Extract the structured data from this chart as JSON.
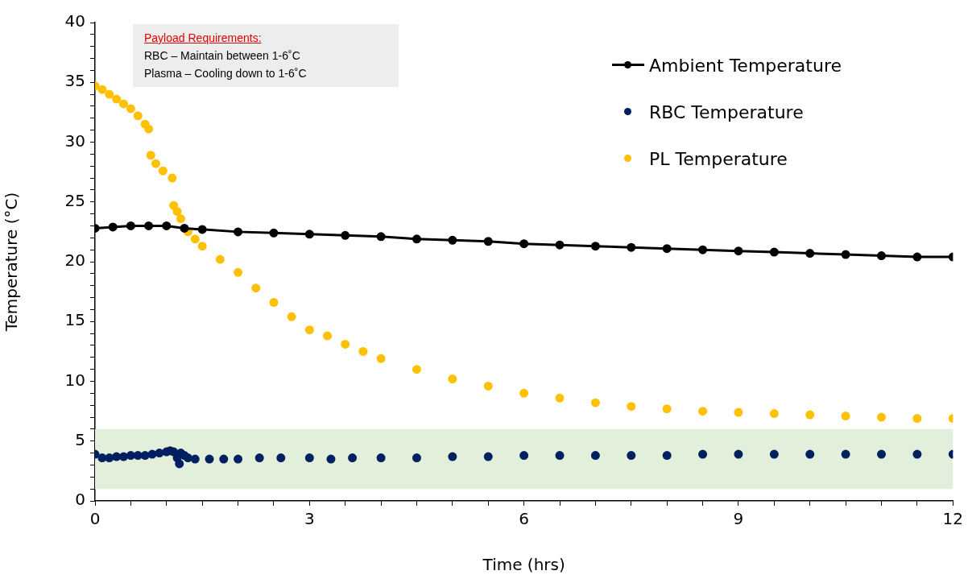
{
  "chart_data": {
    "type": "scatter",
    "xlabel": "Time (hrs)",
    "ylabel": "Temperature (°C)",
    "xlim": [
      0,
      12
    ],
    "ylim": [
      0,
      40
    ],
    "xticks": [
      0,
      {
        "value": 0.5,
        "label": null
      },
      {
        "value": 1,
        "label": null
      },
      {
        "value": 1.5,
        "label": null
      },
      {
        "value": 2,
        "label": null
      },
      {
        "value": 2.5,
        "label": null
      },
      3,
      {
        "value": 3.5,
        "label": null
      },
      {
        "value": 4,
        "label": null
      },
      {
        "value": 4.5,
        "label": null
      },
      {
        "value": 5,
        "label": null
      },
      {
        "value": 5.5,
        "label": null
      },
      6,
      {
        "value": 6.5,
        "label": null
      },
      {
        "value": 7,
        "label": null
      },
      {
        "value": 7.5,
        "label": null
      },
      {
        "value": 8,
        "label": null
      },
      {
        "value": 8.5,
        "label": null
      },
      9,
      {
        "value": 9.5,
        "label": null
      },
      {
        "value": 10,
        "label": null
      },
      {
        "value": 10.5,
        "label": null
      },
      {
        "value": 11,
        "label": null
      },
      {
        "value": 11.5,
        "label": null
      },
      12
    ],
    "yticks": [
      0,
      {
        "value": 1,
        "label": null
      },
      {
        "value": 2,
        "label": null
      },
      {
        "value": 3,
        "label": null
      },
      {
        "value": 4,
        "label": null
      },
      5,
      {
        "value": 6,
        "label": null
      },
      {
        "value": 7,
        "label": null
      },
      {
        "value": 8,
        "label": null
      },
      {
        "value": 9,
        "label": null
      },
      10,
      {
        "value": 11,
        "label": null
      },
      {
        "value": 12,
        "label": null
      },
      {
        "value": 13,
        "label": null
      },
      {
        "value": 14,
        "label": null
      },
      15,
      {
        "value": 16,
        "label": null
      },
      {
        "value": 17,
        "label": null
      },
      {
        "value": 18,
        "label": null
      },
      {
        "value": 19,
        "label": null
      },
      20,
      {
        "value": 21,
        "label": null
      },
      {
        "value": 22,
        "label": null
      },
      {
        "value": 23,
        "label": null
      },
      {
        "value": 24,
        "label": null
      },
      25,
      {
        "value": 26,
        "label": null
      },
      {
        "value": 27,
        "label": null
      },
      {
        "value": 28,
        "label": null
      },
      {
        "value": 29,
        "label": null
      },
      30,
      {
        "value": 31,
        "label": null
      },
      {
        "value": 32,
        "label": null
      },
      {
        "value": 33,
        "label": null
      },
      {
        "value": 34,
        "label": null
      },
      35,
      {
        "value": 36,
        "label": null
      },
      {
        "value": 37,
        "label": null
      },
      {
        "value": 38,
        "label": null
      },
      {
        "value": 39,
        "label": null
      },
      40
    ],
    "grid": false,
    "legend": "top right",
    "marker": "circle",
    "bands": [
      {
        "axis": "y",
        "from": 1,
        "to": 6,
        "color": "#e2efda"
      }
    ],
    "annotations": [
      "Payload Requirements:",
      "RBC – Maintain between 1-6˚C",
      "Plasma – Cooling down to 1-6˚C"
    ],
    "series": [
      {
        "name": "Ambient Temperature",
        "type": "line",
        "color": "#000000",
        "x": [
          0,
          0.25,
          0.5,
          0.75,
          1,
          1.25,
          1.5,
          2,
          2.5,
          3,
          3.5,
          4,
          4.5,
          5,
          5.5,
          6,
          6.5,
          7,
          7.5,
          8,
          8.5,
          9,
          9.5,
          10,
          10.5,
          11,
          11.5,
          12
        ],
        "values": [
          22.8,
          22.9,
          23.0,
          23.0,
          23.0,
          22.8,
          22.7,
          22.5,
          22.4,
          22.3,
          22.2,
          22.1,
          21.9,
          21.8,
          21.7,
          21.5,
          21.4,
          21.3,
          21.2,
          21.1,
          21.0,
          20.9,
          20.8,
          20.7,
          20.6,
          20.5,
          20.4,
          20.4
        ]
      },
      {
        "name": "RBC Temperature",
        "color": "#002060",
        "x": [
          0,
          0.1,
          0.2,
          0.3,
          0.4,
          0.5,
          0.6,
          0.7,
          0.8,
          0.9,
          1,
          1.05,
          1.1,
          1.15,
          1.18,
          1.2,
          1.25,
          1.3,
          1.4,
          1.6,
          1.8,
          2,
          2.3,
          2.6,
          3,
          3.3,
          3.6,
          4,
          4.5,
          5,
          5.5,
          6,
          6.5,
          7,
          7.5,
          8,
          8.5,
          9,
          9.5,
          10,
          10.5,
          11,
          11.5,
          12
        ],
        "values": [
          3.9,
          3.6,
          3.6,
          3.7,
          3.7,
          3.8,
          3.8,
          3.8,
          3.9,
          4.0,
          4.1,
          4.2,
          4.1,
          3.6,
          3.1,
          4.0,
          3.8,
          3.6,
          3.5,
          3.5,
          3.5,
          3.5,
          3.6,
          3.6,
          3.6,
          3.5,
          3.6,
          3.6,
          3.6,
          3.7,
          3.7,
          3.8,
          3.8,
          3.8,
          3.8,
          3.8,
          3.9,
          3.9,
          3.9,
          3.9,
          3.9,
          3.9,
          3.9,
          3.9
        ]
      },
      {
        "name": "PL Temperature",
        "color": "#ffc000",
        "x": [
          0,
          0.1,
          0.2,
          0.3,
          0.4,
          0.5,
          0.6,
          0.7,
          0.75,
          0.78,
          0.85,
          0.95,
          1.08,
          1.1,
          1.15,
          1.2,
          1.3,
          1.4,
          1.5,
          1.75,
          2,
          2.25,
          2.5,
          2.75,
          3,
          3.25,
          3.5,
          3.75,
          4,
          4.5,
          5,
          5.5,
          6,
          6.5,
          7,
          7.5,
          8,
          8.5,
          9,
          9.5,
          10,
          10.5,
          11,
          11.5,
          12
        ],
        "values": [
          34.7,
          34.4,
          34.0,
          33.6,
          33.2,
          32.8,
          32.2,
          31.5,
          31.1,
          28.9,
          28.2,
          27.6,
          27.0,
          24.7,
          24.2,
          23.6,
          22.5,
          21.9,
          21.3,
          20.2,
          19.1,
          17.8,
          16.6,
          15.4,
          14.3,
          13.8,
          13.1,
          12.5,
          11.9,
          11.0,
          10.2,
          9.6,
          9.0,
          8.6,
          8.2,
          7.9,
          7.7,
          7.5,
          7.4,
          7.3,
          7.2,
          7.1,
          7.0,
          6.9,
          6.9
        ]
      }
    ]
  }
}
